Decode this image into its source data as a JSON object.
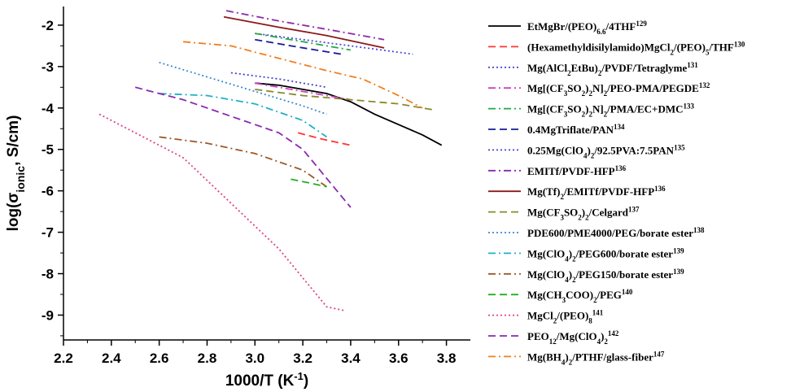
{
  "chart_data": {
    "type": "line",
    "xlabel": "1000/T (K⁻¹)",
    "ylabel": "log(σionic, S/cm)",
    "xlim": [
      2.2,
      3.9
    ],
    "ylim": [
      -9.6,
      -1.55
    ],
    "xticks": [
      "2.2",
      "2.4",
      "2.6",
      "2.8",
      "3.0",
      "3.2",
      "3.4",
      "3.6",
      "3.8"
    ],
    "yticks": [
      "-2",
      "-3",
      "-4",
      "-5",
      "-6",
      "-7",
      "-8",
      "-9"
    ],
    "grid": false,
    "legend_position": "right",
    "series": [
      {
        "name": "EtMgBr/(PEO)6.6/4THF129",
        "color": "#000000",
        "dash": "solid",
        "x": [
          3.0,
          3.1,
          3.2,
          3.3,
          3.4,
          3.5,
          3.6,
          3.7,
          3.78
        ],
        "y": [
          -3.4,
          -3.45,
          -3.55,
          -3.65,
          -3.85,
          -4.15,
          -4.4,
          -4.65,
          -4.9
        ]
      },
      {
        "name": "(Hexamethyldisilylamido)MgCl2/(PEO)5/THF130",
        "color": "#ff3333",
        "dash": "dashed",
        "x": [
          3.18,
          3.28,
          3.4
        ],
        "y": [
          -4.6,
          -4.75,
          -4.9
        ]
      },
      {
        "name": "Mg(AlCl2EtBu)2/PVDF/Tetraglyme131",
        "color": "#4a4ad8",
        "dash": "dotted",
        "x": [
          3.0,
          3.2,
          3.4,
          3.66
        ],
        "y": [
          -2.2,
          -2.35,
          -2.5,
          -2.7
        ]
      },
      {
        "name": "Mg[(CF3SO2)2N]2/PEO-PMA/PEGDE132",
        "color": "#d040c0",
        "dash": "dashdot",
        "x": [
          3.0,
          3.15,
          3.3,
          3.4
        ],
        "y": [
          -3.4,
          -3.55,
          -3.7,
          -3.8
        ]
      },
      {
        "name": "Mg[(CF3SO2)2N]2/PMA/EC+DMC133",
        "color": "#22a845",
        "dash": "dashdot",
        "x": [
          3.0,
          3.1,
          3.2,
          3.3,
          3.4
        ],
        "y": [
          -2.2,
          -2.3,
          -2.4,
          -2.5,
          -2.6
        ]
      },
      {
        "name": "0.4MgTriflate/PAN134",
        "color": "#1a1a9a",
        "dash": "dashed",
        "x": [
          3.0,
          3.15,
          3.36
        ],
        "y": [
          -2.35,
          -2.5,
          -2.7
        ]
      },
      {
        "name": "0.25Mg(ClO4)2/92.5PVA:7.5PAN135",
        "color": "#4444cc",
        "dash": "dotted",
        "x": [
          2.9,
          3.1,
          3.3
        ],
        "y": [
          -3.15,
          -3.3,
          -3.5
        ]
      },
      {
        "name": "EMITf/PVDF-HFP136",
        "color": "#8a2aa8",
        "dash": "dashdot",
        "x": [
          2.88,
          3.1,
          3.3,
          3.54
        ],
        "y": [
          -1.65,
          -1.9,
          -2.1,
          -2.35
        ]
      },
      {
        "name": "Mg(Tf)2/EMITf/PVDF-HFP136",
        "color": "#8b1a1a",
        "dash": "solid",
        "x": [
          2.87,
          3.1,
          3.3,
          3.54
        ],
        "y": [
          -1.8,
          -2.05,
          -2.25,
          -2.55
        ]
      },
      {
        "name": "Mg(CF3SO2)2/Celgard137",
        "color": "#8a8a2a",
        "dash": "dashed",
        "x": [
          3.0,
          3.2,
          3.4,
          3.6,
          3.75
        ],
        "y": [
          -3.55,
          -3.7,
          -3.8,
          -3.9,
          -4.05
        ]
      },
      {
        "name": "PDE600/PME4000/PEG/borate ester138",
        "color": "#3a8ad0",
        "dash": "dotted",
        "x": [
          2.6,
          2.8,
          3.0,
          3.2,
          3.3
        ],
        "y": [
          -2.9,
          -3.25,
          -3.6,
          -3.95,
          -4.15
        ]
      },
      {
        "name": "Mg(ClO4)2/PEG600/borate ester139",
        "color": "#20b0c8",
        "dash": "dashdot",
        "x": [
          2.6,
          2.8,
          3.0,
          3.2,
          3.3
        ],
        "y": [
          -3.65,
          -3.7,
          -3.9,
          -4.3,
          -4.7
        ]
      },
      {
        "name": "Mg(ClO4)2/PEG150/borate ester139",
        "color": "#9a5a2a",
        "dash": "dashdot",
        "x": [
          2.6,
          2.8,
          3.0,
          3.2,
          3.3
        ],
        "y": [
          -4.7,
          -4.85,
          -5.1,
          -5.5,
          -5.9
        ]
      },
      {
        "name": "Mg(CH3COO)2/PEG140",
        "color": "#22b022",
        "dash": "dashed",
        "x": [
          3.15,
          3.22,
          3.3
        ],
        "y": [
          -5.72,
          -5.8,
          -5.9
        ]
      },
      {
        "name": "MgCl2/(PEO)8141",
        "color": "#e0408a",
        "dash": "dotted",
        "x": [
          2.35,
          2.5,
          2.7,
          2.9,
          3.1,
          3.3,
          3.38
        ],
        "y": [
          -4.15,
          -4.6,
          -5.2,
          -6.3,
          -7.4,
          -8.8,
          -8.9
        ]
      },
      {
        "name": "PEO12/Mg(ClO4)2142",
        "color": "#8a2ab0",
        "dash": "dashed",
        "x": [
          2.5,
          2.7,
          2.9,
          3.1,
          3.2,
          3.3,
          3.4
        ],
        "y": [
          -3.5,
          -3.8,
          -4.2,
          -4.6,
          -5.0,
          -5.7,
          -6.4
        ]
      },
      {
        "name": "Mg(BH4)2/PTHF/glass-fiber147",
        "color": "#f08020",
        "dash": "dashdot",
        "x": [
          2.7,
          2.9,
          3.1,
          3.3,
          3.45,
          3.6,
          3.7
        ],
        "y": [
          -2.4,
          -2.5,
          -2.8,
          -3.1,
          -3.3,
          -3.7,
          -4.0
        ]
      }
    ]
  }
}
